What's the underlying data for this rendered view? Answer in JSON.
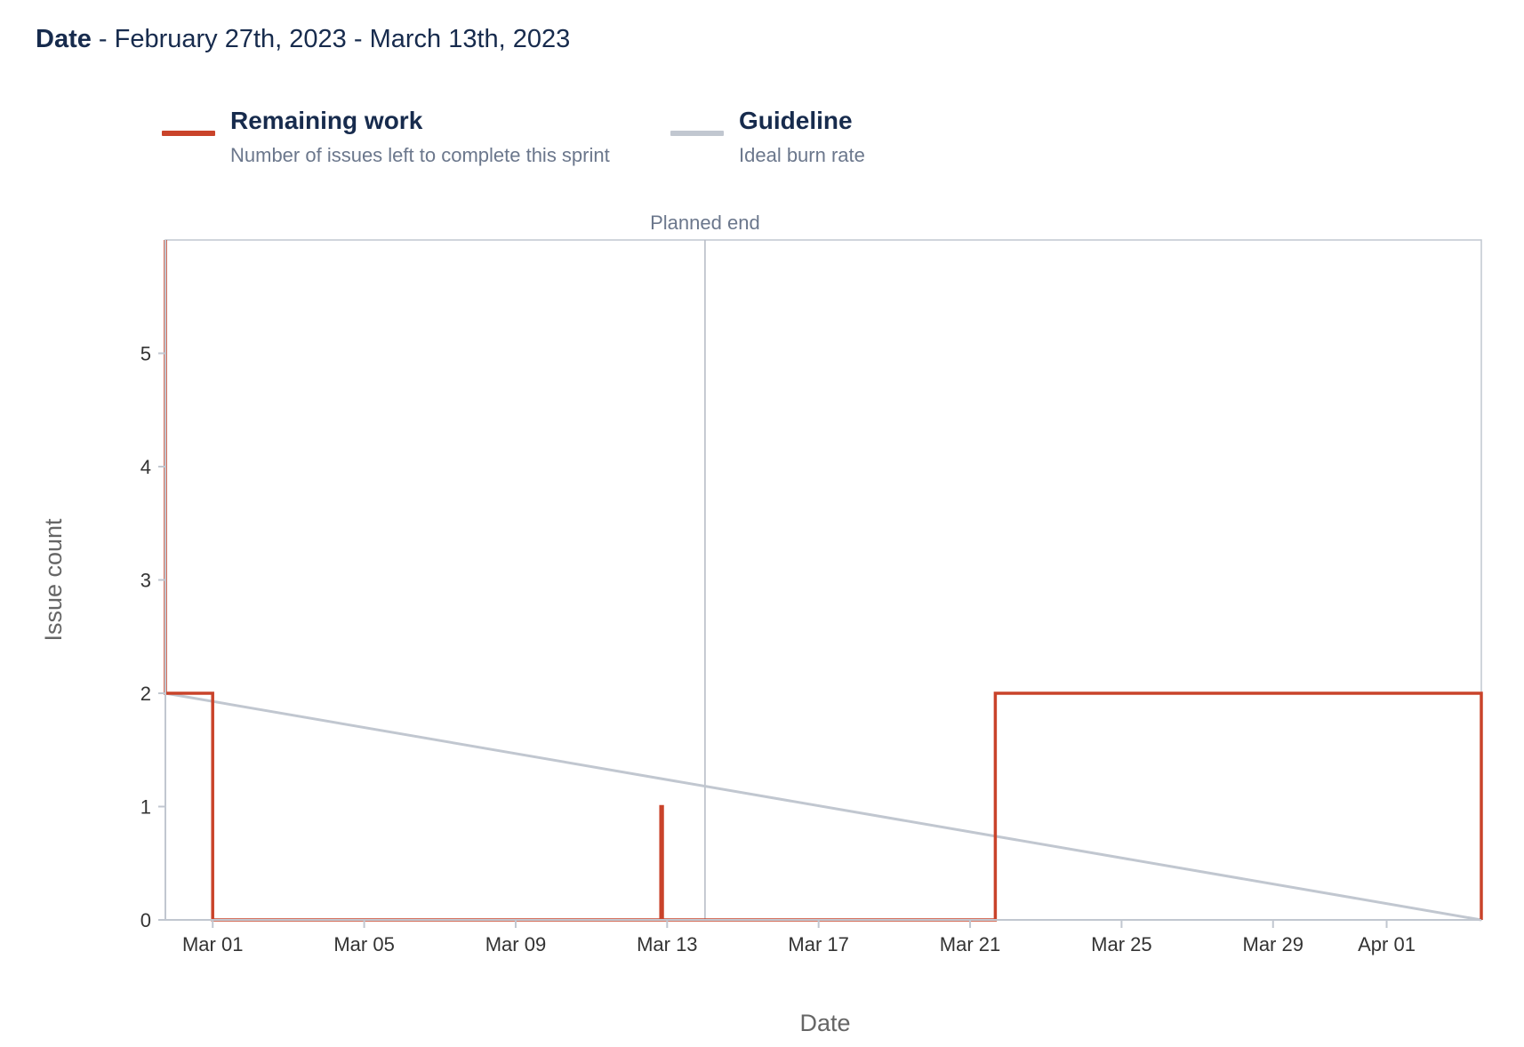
{
  "header": {
    "label": "Date",
    "range": " - February 27th, 2023 - March 13th, 2023"
  },
  "legend": [
    {
      "name": "Remaining work",
      "description": "Number of issues left to complete this sprint",
      "color": "#c9432a"
    },
    {
      "name": "Guideline",
      "description": "Ideal burn rate",
      "color": "#c1c7d0"
    }
  ],
  "chart_data": {
    "type": "line",
    "xlabel": "Date",
    "ylabel": "Issue count",
    "xlim": [
      "2023-02-27T18:00",
      "2023-04-03T12:00"
    ],
    "ylim": [
      0,
      6
    ],
    "yticks": [
      0,
      1,
      2,
      3,
      4,
      5
    ],
    "xticks": [
      {
        "date": "2023-03-01",
        "label": "Mar 01"
      },
      {
        "date": "2023-03-05",
        "label": "Mar 05"
      },
      {
        "date": "2023-03-09",
        "label": "Mar 09"
      },
      {
        "date": "2023-03-13",
        "label": "Mar 13"
      },
      {
        "date": "2023-03-17",
        "label": "Mar 17"
      },
      {
        "date": "2023-03-21",
        "label": "Mar 21"
      },
      {
        "date": "2023-03-25",
        "label": "Mar 25"
      },
      {
        "date": "2023-03-29",
        "label": "Mar 29"
      },
      {
        "date": "2023-04-01",
        "label": "Apr 01"
      }
    ],
    "annotations": [
      {
        "type": "vline",
        "date": "2023-03-14",
        "label": "Planned end",
        "color": "#c1c7d0"
      }
    ],
    "grid": false,
    "legend_position": "top-left",
    "series": [
      {
        "name": "Remaining work",
        "color": "#c9432a",
        "step": true,
        "points": [
          {
            "x": "2023-02-27T18:00",
            "y": 6
          },
          {
            "x": "2023-02-27T18:00",
            "y": 2
          },
          {
            "x": "2023-03-01T00:00",
            "y": 2
          },
          {
            "x": "2023-03-01T00:00",
            "y": 0
          },
          {
            "x": "2023-03-12T20:00",
            "y": 0
          },
          {
            "x": "2023-03-12T20:00",
            "y": 1
          },
          {
            "x": "2023-03-12T21:00",
            "y": 1
          },
          {
            "x": "2023-03-12T21:00",
            "y": 0
          },
          {
            "x": "2023-03-21T16:00",
            "y": 0
          },
          {
            "x": "2023-03-21T16:00",
            "y": 2
          },
          {
            "x": "2023-04-03T12:00",
            "y": 2
          },
          {
            "x": "2023-04-03T12:00",
            "y": 0
          }
        ]
      },
      {
        "name": "Guideline",
        "color": "#c1c7d0",
        "step": false,
        "points": [
          {
            "x": "2023-02-27T18:00",
            "y": 2
          },
          {
            "x": "2023-04-03T12:00",
            "y": 0
          }
        ]
      }
    ]
  }
}
